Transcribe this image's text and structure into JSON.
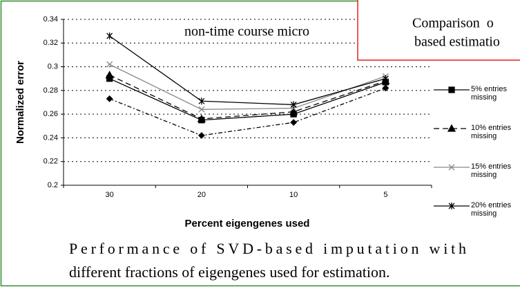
{
  "chart_data": {
    "type": "line",
    "title": "non-time course micro",
    "callout": [
      "Comparison  o",
      "based estimatio"
    ],
    "xlabel": "Percent eigengenes used",
    "ylabel": "Normalized error",
    "categories": [
      "30",
      "20",
      "10",
      "5"
    ],
    "series": [
      {
        "name": "5% entries missing",
        "color": "#000000",
        "marker": "square",
        "dash": "none",
        "values": [
          0.29,
          0.255,
          0.26,
          0.287
        ]
      },
      {
        "name": "10% entries missing",
        "color": "#000000",
        "marker": "triangle",
        "dash": "8,5",
        "values": [
          0.293,
          0.256,
          0.262,
          0.288
        ]
      },
      {
        "name": "15% entries missing",
        "color": "#888888",
        "marker": "x",
        "dash": "none",
        "values": [
          0.302,
          0.264,
          0.265,
          0.292
        ]
      },
      {
        "name": "20% entries missing",
        "color": "#000000",
        "marker": "star",
        "dash": "none",
        "values": [
          0.326,
          0.271,
          0.268,
          0.29
        ]
      },
      {
        "color": "#000000",
        "marker": "diamond",
        "dash": "6,3,2,3",
        "values": [
          0.273,
          0.242,
          0.253,
          0.282
        ]
      }
    ],
    "ylim": [
      0.2,
      0.34
    ],
    "yticks": [
      0.2,
      0.22,
      0.24,
      0.26,
      0.28,
      0.3,
      0.32,
      0.34
    ],
    "grid": true,
    "legend": "right",
    "caption": [
      "Performance of SVD-based imputation with",
      "different fractions of eigengenes used for estimation."
    ]
  }
}
